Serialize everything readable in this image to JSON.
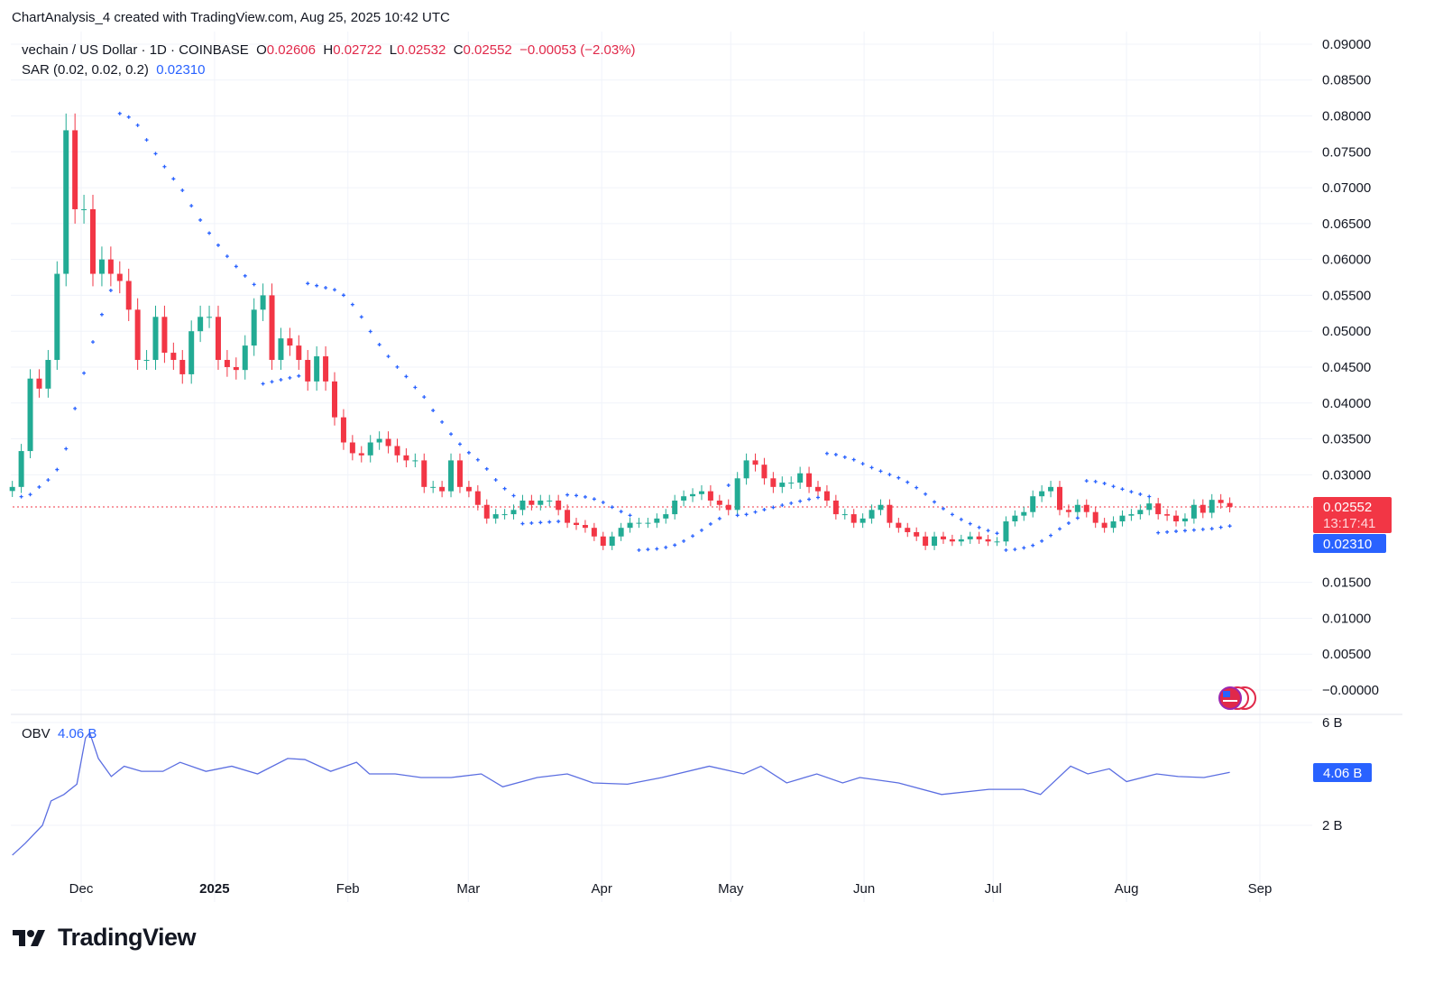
{
  "credit": "ChartAnalysis_4 created with TradingView.com, Aug 25, 2025 10:42 UTC",
  "legend": {
    "symbol": "vechain / US Dollar · 1D · COINBASE",
    "o_label": "O",
    "o": "0.02606",
    "h_label": "H",
    "h": "0.02722",
    "l_label": "L",
    "l": "0.02532",
    "c_label": "C",
    "c": "0.02552",
    "change": "−0.00053 (−2.03%)",
    "sar_label": "SAR (0.02, 0.02, 0.2)",
    "sar_value": "0.02310",
    "obv_label": "OBV",
    "obv_value": "4.06 B"
  },
  "badges": {
    "price": "0.02552",
    "countdown": "13:17:41",
    "sar": "0.02310",
    "obv": "4.06 B"
  },
  "colors": {
    "up": "#22ab94",
    "down": "#f23645",
    "sar": "#2962ff",
    "obv": "#5b6ee1",
    "price_badge": "#f23645",
    "sar_badge": "#2962ff"
  },
  "brand": "TradingView",
  "chart_data": [
    {
      "type": "candlestick",
      "title": "vechain / US Dollar · 1D · COINBASE",
      "start_date": "2024-11-15",
      "end_date": "2025-08-25",
      "closes": [
        0.0283,
        0.0333,
        0.0434,
        0.042,
        0.046,
        0.058,
        0.078,
        0.067,
        0.067,
        0.058,
        0.06,
        0.058,
        0.057,
        0.053,
        0.046,
        0.046,
        0.052,
        0.047,
        0.046,
        0.044,
        0.05,
        0.052,
        0.052,
        0.046,
        0.045,
        0.0446,
        0.048,
        0.053,
        0.055,
        0.046,
        0.049,
        0.048,
        0.046,
        0.043,
        0.0465,
        0.043,
        0.038,
        0.0345,
        0.033,
        0.0327,
        0.0345,
        0.035,
        0.034,
        0.0327,
        0.032,
        0.032,
        0.0283,
        0.0283,
        0.0277,
        0.032,
        0.0283,
        0.0277,
        0.0258,
        0.0239,
        0.0245,
        0.0245,
        0.0251,
        0.0264,
        0.0258,
        0.0264,
        0.0264,
        0.0251,
        0.0233,
        0.023,
        0.0226,
        0.0214,
        0.0201,
        0.0214,
        0.0226,
        0.0233,
        0.0233,
        0.0233,
        0.0239,
        0.0245,
        0.0264,
        0.027,
        0.0273,
        0.0277,
        0.0264,
        0.0258,
        0.0251,
        0.0295,
        0.032,
        0.0314,
        0.0295,
        0.0283,
        0.0289,
        0.0289,
        0.0302,
        0.0283,
        0.0277,
        0.0264,
        0.0245,
        0.0245,
        0.0233,
        0.0239,
        0.0251,
        0.0258,
        0.0233,
        0.0226,
        0.022,
        0.0214,
        0.0201,
        0.0214,
        0.021,
        0.0207,
        0.021,
        0.0214,
        0.021,
        0.0207,
        0.0207,
        0.0235,
        0.0243,
        0.0248,
        0.027,
        0.0277,
        0.0283,
        0.0251,
        0.0248,
        0.0258,
        0.0248,
        0.0233,
        0.0226,
        0.0235,
        0.0243,
        0.0245,
        0.0251,
        0.026,
        0.0245,
        0.0243,
        0.0235,
        0.0239,
        0.0258,
        0.0247,
        0.0265,
        0.02606,
        0.02552
      ],
      "y_ticks": [
        "0.09000",
        "0.08500",
        "0.08000",
        "0.07500",
        "0.07000",
        "0.06500",
        "0.06000",
        "0.05500",
        "0.05000",
        "0.04500",
        "0.04000",
        "0.03500",
        "0.03000",
        "0.01500",
        "0.01000",
        "0.00500",
        "−0.00000"
      ],
      "ylim": [
        0,
        0.09
      ],
      "indicator": {
        "name": "SAR (0.02, 0.02, 0.2)",
        "last": 0.0231
      }
    },
    {
      "type": "line",
      "title": "OBV",
      "unit": "B",
      "points": [
        [
          "2024-11-15",
          0.84
        ],
        [
          "2024-11-18",
          1.3
        ],
        [
          "2024-11-22",
          2.0
        ],
        [
          "2024-11-24",
          2.95
        ],
        [
          "2024-11-27",
          3.2
        ],
        [
          "2024-11-30",
          3.6
        ],
        [
          "2024-12-02",
          5.4
        ],
        [
          "2024-12-03",
          5.6
        ],
        [
          "2024-12-05",
          4.6
        ],
        [
          "2024-12-08",
          3.9
        ],
        [
          "2024-12-11",
          4.3
        ],
        [
          "2024-12-15",
          4.1
        ],
        [
          "2024-12-20",
          4.1
        ],
        [
          "2024-12-24",
          4.45
        ],
        [
          "2024-12-30",
          4.1
        ],
        [
          "2025-01-05",
          4.3
        ],
        [
          "2025-01-11",
          4.0
        ],
        [
          "2025-01-18",
          4.6
        ],
        [
          "2025-01-22",
          4.56
        ],
        [
          "2025-01-28",
          4.1
        ],
        [
          "2025-02-03",
          4.45
        ],
        [
          "2025-02-06",
          4.0
        ],
        [
          "2025-02-12",
          4.0
        ],
        [
          "2025-02-18",
          3.86
        ],
        [
          "2025-02-25",
          3.86
        ],
        [
          "2025-03-04",
          4.0
        ],
        [
          "2025-03-09",
          3.5
        ],
        [
          "2025-03-17",
          3.86
        ],
        [
          "2025-03-24",
          4.0
        ],
        [
          "2025-03-30",
          3.65
        ],
        [
          "2025-04-07",
          3.6
        ],
        [
          "2025-04-15",
          3.86
        ],
        [
          "2025-04-26",
          4.3
        ],
        [
          "2025-05-04",
          4.0
        ],
        [
          "2025-05-08",
          4.3
        ],
        [
          "2025-05-14",
          3.65
        ],
        [
          "2025-05-21",
          4.0
        ],
        [
          "2025-05-27",
          3.65
        ],
        [
          "2025-05-31",
          3.86
        ],
        [
          "2025-06-09",
          3.65
        ],
        [
          "2025-06-19",
          3.2
        ],
        [
          "2025-06-30",
          3.4
        ],
        [
          "2025-07-08",
          3.4
        ],
        [
          "2025-07-12",
          3.2
        ],
        [
          "2025-07-19",
          4.3
        ],
        [
          "2025-07-23",
          4.0
        ],
        [
          "2025-07-28",
          4.2
        ],
        [
          "2025-08-01",
          3.7
        ],
        [
          "2025-08-08",
          4.0
        ],
        [
          "2025-08-13",
          3.9
        ],
        [
          "2025-08-19",
          3.86
        ],
        [
          "2025-08-25",
          4.06
        ]
      ],
      "y_ticks": [
        "6 B",
        "2 B"
      ]
    }
  ],
  "x_ticks": [
    {
      "label": "Dec",
      "date": "2024-12-01",
      "bold": false
    },
    {
      "label": "2025",
      "date": "2025-01-01",
      "bold": true
    },
    {
      "label": "Feb",
      "date": "2025-02-01",
      "bold": false
    },
    {
      "label": "Mar",
      "date": "2025-03-01",
      "bold": false
    },
    {
      "label": "Apr",
      "date": "2025-04-01",
      "bold": false
    },
    {
      "label": "May",
      "date": "2025-05-01",
      "bold": false
    },
    {
      "label": "Jun",
      "date": "2025-06-01",
      "bold": false
    },
    {
      "label": "Jul",
      "date": "2025-07-01",
      "bold": false
    },
    {
      "label": "Aug",
      "date": "2025-08-01",
      "bold": false
    },
    {
      "label": "Sep",
      "date": "2025-09-01",
      "bold": false
    }
  ]
}
